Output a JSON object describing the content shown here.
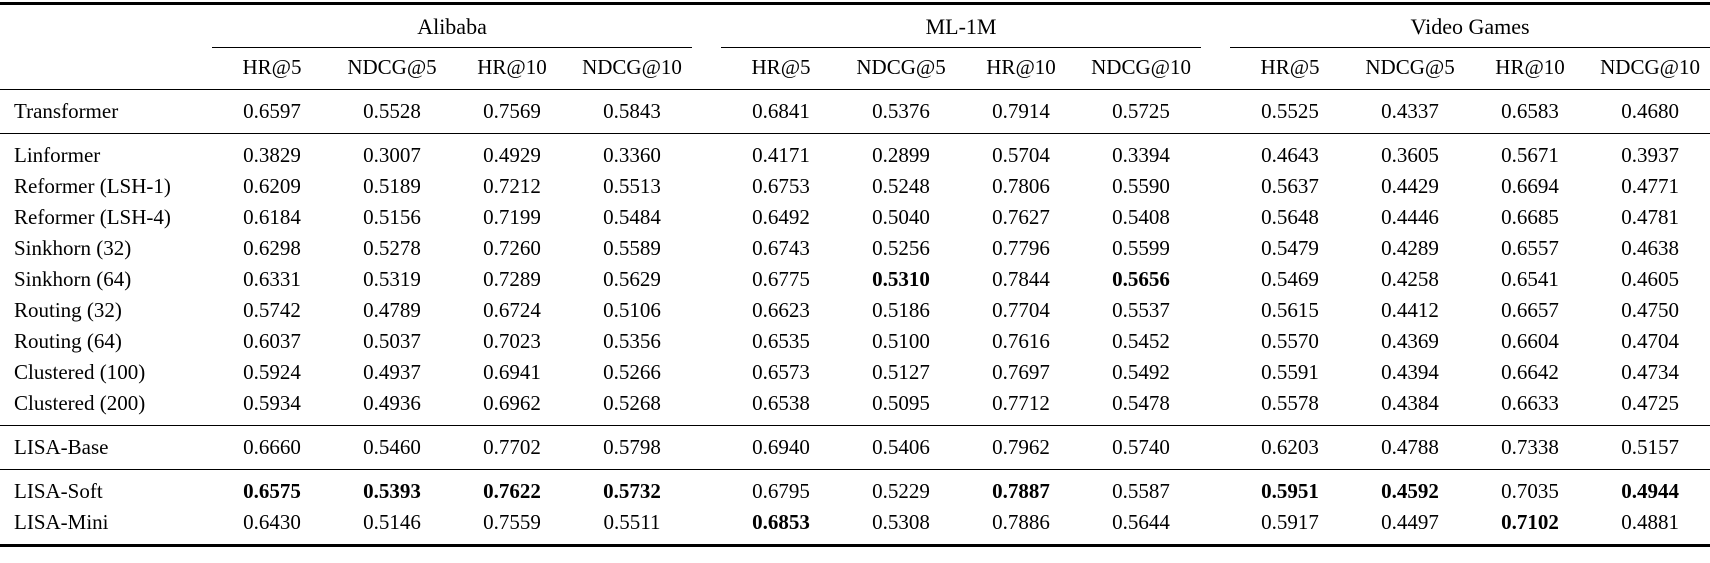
{
  "table": {
    "col_groups": [
      {
        "label": "Alibaba",
        "metrics": [
          "HR@5",
          "NDCG@5",
          "HR@10",
          "NDCG@10"
        ]
      },
      {
        "label": "ML-1M",
        "metrics": [
          "HR@5",
          "NDCG@5",
          "HR@10",
          "NDCG@10"
        ]
      },
      {
        "label": "Video Games",
        "metrics": [
          "HR@5",
          "NDCG@5",
          "HR@10",
          "NDCG@10"
        ]
      }
    ],
    "sections": [
      {
        "name": "full-attention",
        "rows": [
          {
            "label": "Transformer",
            "values": [
              "0.6597",
              "0.5528",
              "0.7569",
              "0.5843",
              "0.6841",
              "0.5376",
              "0.7914",
              "0.5725",
              "0.5525",
              "0.4337",
              "0.6583",
              "0.4680"
            ],
            "bold": []
          }
        ]
      },
      {
        "name": "efficient-baselines",
        "rows": [
          {
            "label": "Linformer",
            "values": [
              "0.3829",
              "0.3007",
              "0.4929",
              "0.3360",
              "0.4171",
              "0.2899",
              "0.5704",
              "0.3394",
              "0.4643",
              "0.3605",
              "0.5671",
              "0.3937"
            ],
            "bold": []
          },
          {
            "label": "Reformer (LSH-1)",
            "values": [
              "0.6209",
              "0.5189",
              "0.7212",
              "0.5513",
              "0.6753",
              "0.5248",
              "0.7806",
              "0.5590",
              "0.5637",
              "0.4429",
              "0.6694",
              "0.4771"
            ],
            "bold": []
          },
          {
            "label": "Reformer (LSH-4)",
            "values": [
              "0.6184",
              "0.5156",
              "0.7199",
              "0.5484",
              "0.6492",
              "0.5040",
              "0.7627",
              "0.5408",
              "0.5648",
              "0.4446",
              "0.6685",
              "0.4781"
            ],
            "bold": []
          },
          {
            "label": "Sinkhorn (32)",
            "values": [
              "0.6298",
              "0.5278",
              "0.7260",
              "0.5589",
              "0.6743",
              "0.5256",
              "0.7796",
              "0.5599",
              "0.5479",
              "0.4289",
              "0.6557",
              "0.4638"
            ],
            "bold": []
          },
          {
            "label": "Sinkhorn (64)",
            "values": [
              "0.6331",
              "0.5319",
              "0.7289",
              "0.5629",
              "0.6775",
              "0.5310",
              "0.7844",
              "0.5656",
              "0.5469",
              "0.4258",
              "0.6541",
              "0.4605"
            ],
            "bold": [
              5,
              7
            ]
          },
          {
            "label": "Routing (32)",
            "values": [
              "0.5742",
              "0.4789",
              "0.6724",
              "0.5106",
              "0.6623",
              "0.5186",
              "0.7704",
              "0.5537",
              "0.5615",
              "0.4412",
              "0.6657",
              "0.4750"
            ],
            "bold": []
          },
          {
            "label": "Routing (64)",
            "values": [
              "0.6037",
              "0.5037",
              "0.7023",
              "0.5356",
              "0.6535",
              "0.5100",
              "0.7616",
              "0.5452",
              "0.5570",
              "0.4369",
              "0.6604",
              "0.4704"
            ],
            "bold": []
          },
          {
            "label": "Clustered (100)",
            "values": [
              "0.5924",
              "0.4937",
              "0.6941",
              "0.5266",
              "0.6573",
              "0.5127",
              "0.7697",
              "0.5492",
              "0.5591",
              "0.4394",
              "0.6642",
              "0.4734"
            ],
            "bold": []
          },
          {
            "label": "Clustered (200)",
            "values": [
              "0.5934",
              "0.4936",
              "0.6962",
              "0.5268",
              "0.6538",
              "0.5095",
              "0.7712",
              "0.5478",
              "0.5578",
              "0.4384",
              "0.6633",
              "0.4725"
            ],
            "bold": []
          }
        ]
      },
      {
        "name": "lisa-base",
        "rows": [
          {
            "label": "LISA-Base",
            "values": [
              "0.6660",
              "0.5460",
              "0.7702",
              "0.5798",
              "0.6940",
              "0.5406",
              "0.7962",
              "0.5740",
              "0.6203",
              "0.4788",
              "0.7338",
              "0.5157"
            ],
            "bold": []
          }
        ]
      },
      {
        "name": "lisa-variants",
        "rows": [
          {
            "label": "LISA-Soft",
            "values": [
              "0.6575",
              "0.5393",
              "0.7622",
              "0.5732",
              "0.6795",
              "0.5229",
              "0.7887",
              "0.5587",
              "0.5951",
              "0.4592",
              "0.7035",
              "0.4944"
            ],
            "bold": [
              0,
              1,
              2,
              3,
              6,
              8,
              9,
              11
            ]
          },
          {
            "label": "LISA-Mini",
            "values": [
              "0.6430",
              "0.5146",
              "0.7559",
              "0.5511",
              "0.6853",
              "0.5308",
              "0.7886",
              "0.5644",
              "0.5917",
              "0.4497",
              "0.7102",
              "0.4881"
            ],
            "bold": [
              4,
              10
            ]
          }
        ]
      }
    ]
  }
}
